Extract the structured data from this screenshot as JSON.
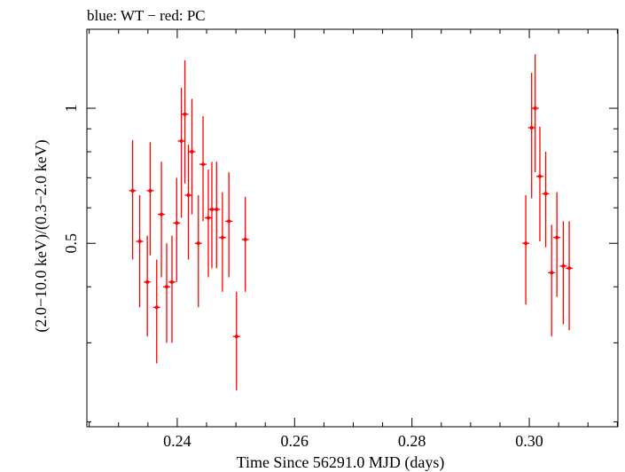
{
  "chart_data": {
    "type": "scatter",
    "title": "blue: WT − red: PC",
    "xlabel": "Time Since 56291.0 MJD (days)",
    "ylabel": "(2.0−10.0 keV)/(0.3−2.0 keV)",
    "xlim": [
      0.2246,
      0.3151
    ],
    "ylim": [
      0.195,
      1.5
    ],
    "y_scale": "log",
    "x_ticks": [
      {
        "value": 0.24,
        "label": "0.24"
      },
      {
        "value": 0.26,
        "label": "0.26"
      },
      {
        "value": 0.28,
        "label": "0.28"
      },
      {
        "value": 0.3,
        "label": "0.30"
      }
    ],
    "y_ticks": [
      {
        "value": 0.5,
        "label": "0.5"
      },
      {
        "value": 1,
        "label": "1"
      }
    ],
    "grid": false,
    "series": [
      {
        "name": "PC",
        "color": "#ff0000",
        "points": [
          {
            "x": 0.2324,
            "y": 0.655,
            "ylo": 0.46,
            "yhi": 0.85
          },
          {
            "x": 0.2336,
            "y": 0.505,
            "ylo": 0.36,
            "yhi": 0.64
          },
          {
            "x": 0.2349,
            "y": 0.41,
            "ylo": 0.31,
            "yhi": 0.52
          },
          {
            "x": 0.2354,
            "y": 0.655,
            "ylo": 0.47,
            "yhi": 0.84
          },
          {
            "x": 0.2365,
            "y": 0.36,
            "ylo": 0.27,
            "yhi": 0.46
          },
          {
            "x": 0.2373,
            "y": 0.58,
            "ylo": 0.42,
            "yhi": 0.76
          },
          {
            "x": 0.2382,
            "y": 0.4,
            "ylo": 0.3,
            "yhi": 0.5
          },
          {
            "x": 0.2391,
            "y": 0.41,
            "ylo": 0.3,
            "yhi": 0.52
          },
          {
            "x": 0.2399,
            "y": 0.555,
            "ylo": 0.41,
            "yhi": 0.7
          },
          {
            "x": 0.2407,
            "y": 0.845,
            "ylo": 0.57,
            "yhi": 1.11
          },
          {
            "x": 0.2413,
            "y": 0.97,
            "ylo": 0.68,
            "yhi": 1.28
          },
          {
            "x": 0.2419,
            "y": 0.64,
            "ylo": 0.46,
            "yhi": 0.83
          },
          {
            "x": 0.2425,
            "y": 0.8,
            "ylo": 0.58,
            "yhi": 1.05
          },
          {
            "x": 0.2436,
            "y": 0.5,
            "ylo": 0.36,
            "yhi": 0.64
          },
          {
            "x": 0.2444,
            "y": 0.75,
            "ylo": 0.56,
            "yhi": 0.96
          },
          {
            "x": 0.2453,
            "y": 0.57,
            "ylo": 0.42,
            "yhi": 0.73
          },
          {
            "x": 0.2459,
            "y": 0.595,
            "ylo": 0.44,
            "yhi": 0.76
          },
          {
            "x": 0.2467,
            "y": 0.595,
            "ylo": 0.44,
            "yhi": 0.76
          },
          {
            "x": 0.2477,
            "y": 0.515,
            "ylo": 0.39,
            "yhi": 0.65
          },
          {
            "x": 0.2488,
            "y": 0.56,
            "ylo": 0.42,
            "yhi": 0.72
          },
          {
            "x": 0.2501,
            "y": 0.31,
            "ylo": 0.235,
            "yhi": 0.39
          },
          {
            "x": 0.2516,
            "y": 0.51,
            "ylo": 0.39,
            "yhi": 0.635
          },
          {
            "x": 0.2994,
            "y": 0.5,
            "ylo": 0.365,
            "yhi": 0.64
          },
          {
            "x": 0.3004,
            "y": 0.905,
            "ylo": 0.63,
            "yhi": 1.2
          },
          {
            "x": 0.301,
            "y": 1.0,
            "ylo": 0.72,
            "yhi": 1.32
          },
          {
            "x": 0.3018,
            "y": 0.705,
            "ylo": 0.505,
            "yhi": 0.91
          },
          {
            "x": 0.3028,
            "y": 0.645,
            "ylo": 0.49,
            "yhi": 0.8
          },
          {
            "x": 0.3038,
            "y": 0.43,
            "ylo": 0.31,
            "yhi": 0.55
          },
          {
            "x": 0.3047,
            "y": 0.515,
            "ylo": 0.38,
            "yhi": 0.65
          },
          {
            "x": 0.3058,
            "y": 0.445,
            "ylo": 0.33,
            "yhi": 0.56
          },
          {
            "x": 0.3068,
            "y": 0.44,
            "ylo": 0.32,
            "yhi": 0.56
          }
        ]
      }
    ]
  }
}
